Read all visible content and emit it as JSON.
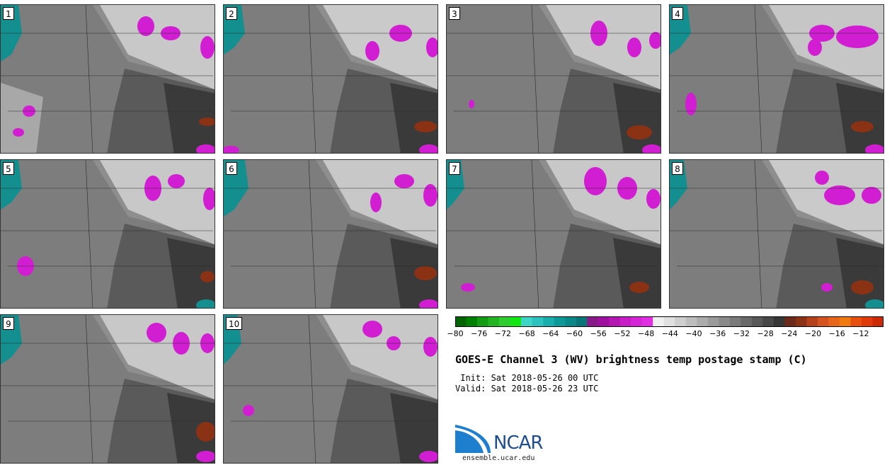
{
  "panels": [
    {
      "label": "1"
    },
    {
      "label": "2"
    },
    {
      "label": "3"
    },
    {
      "label": "4"
    },
    {
      "label": "5"
    },
    {
      "label": "6"
    },
    {
      "label": "7"
    },
    {
      "label": "8"
    },
    {
      "label": "9"
    },
    {
      "label": "10"
    }
  ],
  "colorbar": {
    "ticks": [
      "−80",
      "−76",
      "−72",
      "−68",
      "−64",
      "−60",
      "−56",
      "−52",
      "−48",
      "−44",
      "−40",
      "−36",
      "−32",
      "−28",
      "−24",
      "−20",
      "−16",
      "−12"
    ],
    "colors": [
      "#006400",
      "#008000",
      "#139c13",
      "#22b422",
      "#2ecc2e",
      "#14e614",
      "#3cd5c8",
      "#2bc2c0",
      "#1aadad",
      "#0e9999",
      "#0a8888",
      "#087676",
      "#881a88",
      "#a010a0",
      "#b416b4",
      "#c81ec8",
      "#d625d6",
      "#e22ee2",
      "#f0f0f0",
      "#e0e0e0",
      "#cfcfcf",
      "#bdbdbd",
      "#acacac",
      "#9b9b9b",
      "#8a8a8a",
      "#7a7a7a",
      "#696969",
      "#585858",
      "#474747",
      "#363636",
      "#6b2a1a",
      "#8b3214",
      "#b4411a",
      "#d2531e",
      "#e8661a",
      "#f07a10",
      "#e85010",
      "#e03a0a",
      "#cc2a06"
    ]
  },
  "title": "GOES-E Channel 3 (WV) brightness temp postage stamp (C)",
  "init": " Init: Sat 2018-05-26 00 UTC",
  "valid": "Valid: Sat 2018-05-26 23 UTC",
  "logo_text": "NCAR",
  "website": "ensemble.ucar.edu"
}
